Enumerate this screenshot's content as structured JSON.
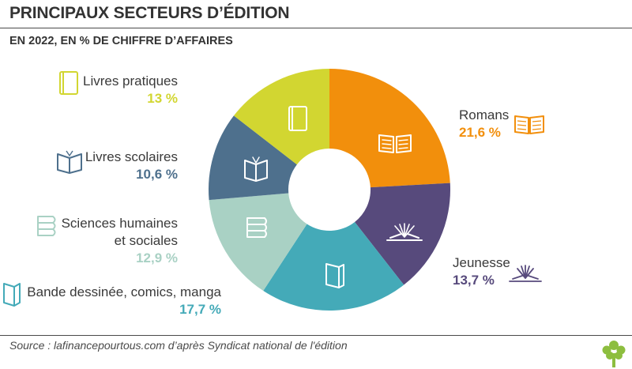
{
  "header": {
    "title": "PRINCIPAUX SECTEURS D’ÉDITION",
    "subtitle": "EN 2022, EN % DE CHIFFRE D’AFFAIRES"
  },
  "footer": {
    "source": "Source : lafinancepourtous.com d’après Syndicat national de l'édition"
  },
  "colors": {
    "romans": "#F28F0C",
    "jeunesse": "#574A7C",
    "bd": "#44AAB8",
    "sciences": "#A9D1C4",
    "scolaires": "#4E708D",
    "pratiques": "#D2D631"
  },
  "labels": {
    "romans": {
      "name": "Romans",
      "pct": "21,6 %"
    },
    "jeunesse": {
      "name": "Jeunesse",
      "pct": "13,7 %"
    },
    "bd": {
      "name": "Bande dessinée, comics, manga",
      "pct": "17,7 %"
    },
    "sciences": {
      "name_line1": "Sciences humaines",
      "name_line2": "et sociales",
      "pct": "12,9 %"
    },
    "scolaires": {
      "name": "Livres scolaires",
      "pct": "10,6 %"
    },
    "pratiques": {
      "name": "Livres pratiques",
      "pct": "13 %"
    }
  },
  "chart_data": {
    "type": "pie",
    "variant": "donut",
    "title": "PRINCIPAUX SECTEURS D’ÉDITION",
    "subtitle": "EN 2022, EN % DE CHIFFRE D’AFFAIRES",
    "categories": [
      "Romans",
      "Jeunesse",
      "Bande dessinée, comics, manga",
      "Sciences humaines et sociales",
      "Livres scolaires",
      "Livres pratiques"
    ],
    "values": [
      21.6,
      13.7,
      17.7,
      12.9,
      10.6,
      13
    ],
    "unit": "%",
    "colors": [
      "#F28F0C",
      "#574A7C",
      "#44AAB8",
      "#A9D1C4",
      "#4E708D",
      "#D2D631"
    ],
    "icons": [
      "open-book-icon",
      "fanned-book-icon",
      "standing-books-icon",
      "stacked-books-icon",
      "open-book-front-icon",
      "closed-book-icon"
    ],
    "start_angle": "12 o'clock",
    "direction": "clockwise"
  }
}
